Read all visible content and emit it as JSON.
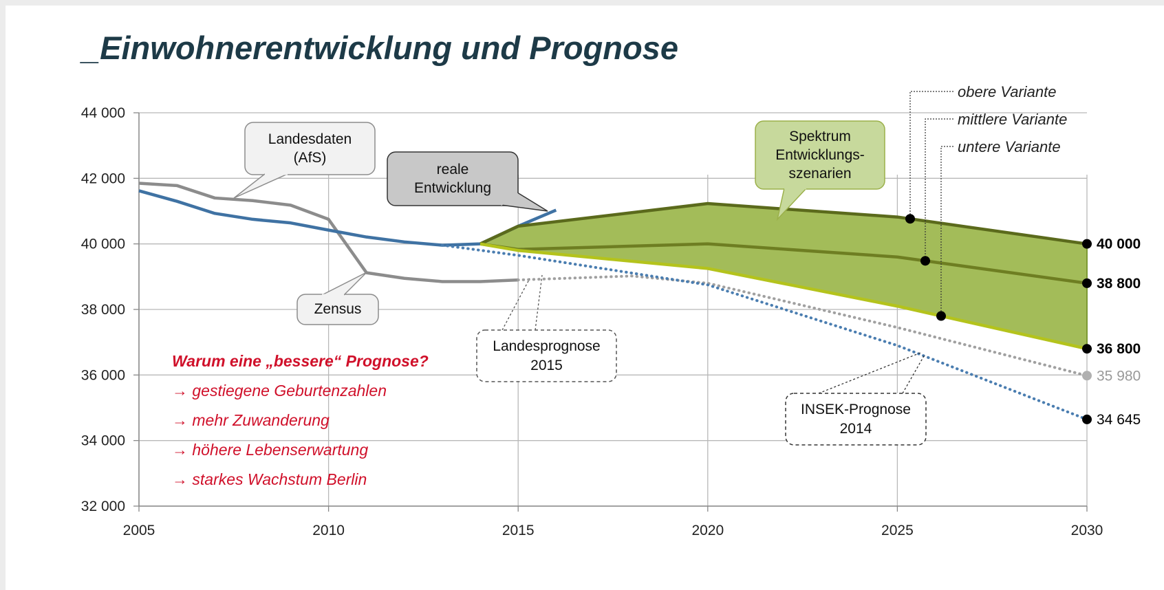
{
  "chart_data": {
    "type": "line",
    "title": "_Einwohnerentwicklung und Prognose",
    "xlim": [
      2005,
      2030
    ],
    "ylim": [
      32000,
      44000
    ],
    "xticks": [
      2005,
      2010,
      2015,
      2020,
      2025,
      2030
    ],
    "yticks": [
      {
        "value": 32000,
        "label": "32 000"
      },
      {
        "value": 34000,
        "label": "34 000"
      },
      {
        "value": 36000,
        "label": "36 000"
      },
      {
        "value": 38000,
        "label": "38 000"
      },
      {
        "value": 40000,
        "label": "40 000"
      },
      {
        "value": 42000,
        "label": "42 000"
      },
      {
        "value": 44000,
        "label": "44 000"
      }
    ],
    "grid": true,
    "area": {
      "series": [
        2,
        4
      ],
      "color": "#a3bc59"
    },
    "series": [
      {
        "name": "Landesdaten\n(AfS)",
        "color": "#8c8c8c",
        "style": "solid",
        "x": [
          2005,
          2006,
          2007,
          2008,
          2009,
          2010,
          2011,
          2012,
          2013,
          2014,
          2015
        ],
        "values": [
          41850,
          41780,
          41400,
          41320,
          41180,
          40750,
          39120,
          38950,
          38850,
          38850,
          38900
        ]
      },
      {
        "name": "reale\nEntwicklung",
        "color": "#3f72a3",
        "style": "solid",
        "x": [
          2005,
          2006,
          2007,
          2008,
          2009,
          2010,
          2011,
          2012,
          2013,
          2014,
          2015,
          2016
        ],
        "values": [
          41620,
          41300,
          40930,
          40750,
          40640,
          40420,
          40210,
          40060,
          39960,
          40000,
          40540,
          41030
        ]
      },
      {
        "name": "obere Variante",
        "color": "#5b6a1c",
        "style": "solid",
        "x": [
          2014,
          2015,
          2020,
          2025,
          2030
        ],
        "values": [
          40000,
          40540,
          41230,
          40820,
          40000
        ],
        "value_labels": [
          null,
          null,
          null,
          null,
          "40 000"
        ]
      },
      {
        "name": "mittlere Variante",
        "color": "#6e7e22",
        "style": "solid",
        "x": [
          2014,
          2015,
          2020,
          2025,
          2030
        ],
        "values": [
          40000,
          39830,
          40000,
          39600,
          38800
        ],
        "value_labels": [
          null,
          null,
          null,
          null,
          "38 800"
        ]
      },
      {
        "name": "untere Variante",
        "color": "#b4c31c",
        "style": "solid",
        "x": [
          2014,
          2015,
          2020,
          2025,
          2030
        ],
        "values": [
          40000,
          39800,
          39250,
          38100,
          36800
        ],
        "value_labels": [
          null,
          null,
          null,
          null,
          "36 800"
        ]
      },
      {
        "name": "Landesprognose\n2015",
        "color": "#a0a0a0",
        "style": "dotted",
        "x": [
          2015,
          2018,
          2020,
          2025,
          2030
        ],
        "values": [
          38900,
          39020,
          38800,
          37450,
          35980
        ],
        "value_labels": [
          null,
          null,
          null,
          null,
          "35 980"
        ]
      },
      {
        "name": "INSEK-Prognose\n2014",
        "color": "#4a7db0",
        "style": "dotted",
        "x": [
          2013,
          2015,
          2020,
          2025,
          2030
        ],
        "values": [
          39960,
          39650,
          38750,
          36900,
          34645
        ],
        "value_labels": [
          null,
          null,
          null,
          null,
          "34 645"
        ]
      }
    ],
    "annotations": [
      "Zensus",
      "Spektrum\nEntwicklungs-\nszenarien"
    ],
    "notes": {
      "heading": "Warum eine „bessere“ Prognose?",
      "items": [
        "→ gestiegene Geburtenzahlen",
        "→ mehr Zuwanderung",
        "→ höhere Lebenserwartung",
        "→ starkes Wachstum Berlin"
      ]
    }
  }
}
